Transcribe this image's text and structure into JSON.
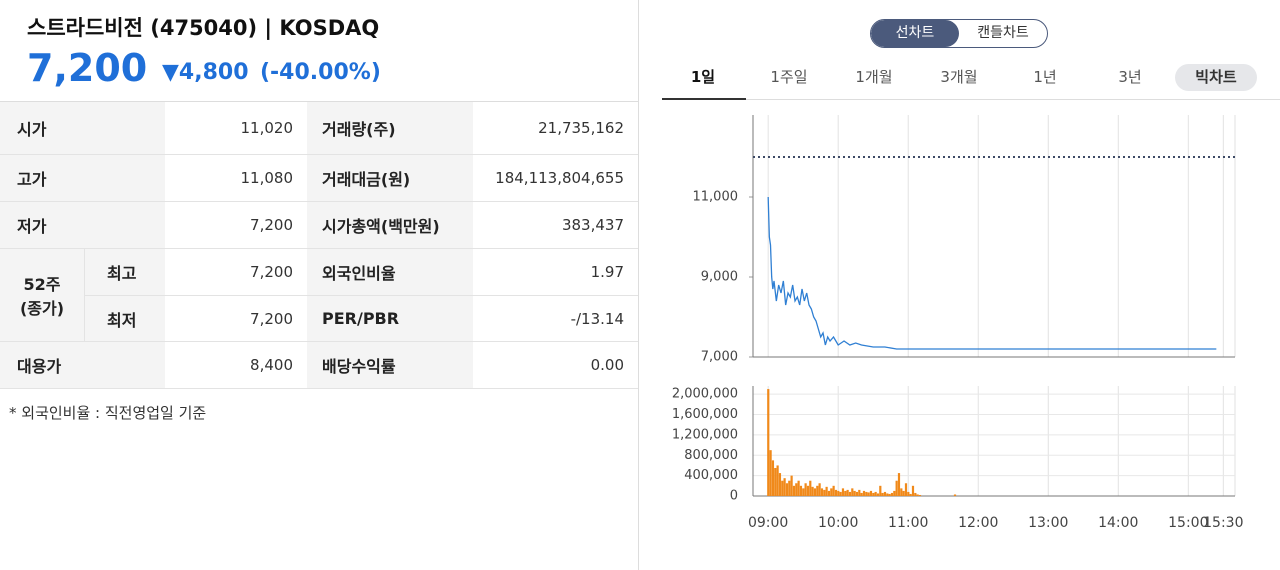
{
  "header": {
    "title": "스트라드비전 (475040) | KOSDAQ",
    "price": "7,200",
    "change": "▼4,800",
    "change_rate": "(-40.00%)"
  },
  "table": {
    "rows": [
      [
        "시가",
        "11,020",
        "거래량(주)",
        "21,735,162"
      ],
      [
        "고가",
        "11,080",
        "거래대금(원)",
        "184,113,804,655"
      ],
      [
        "저가",
        "7,200",
        "시가총액(백만원)",
        "383,437"
      ],
      [
        "최고",
        "7,200",
        "외국인비율",
        "1.97"
      ],
      [
        "최저",
        "7,200",
        "PER/PBR",
        "-/13.14"
      ],
      [
        "대용가",
        "8,400",
        "배당수익률",
        "0.00"
      ]
    ],
    "group_label": [
      "52주",
      "(종가)"
    ]
  },
  "footnote": "* 외국인비율 : 직전영업일 기준",
  "controls": {
    "segment": [
      "선차트",
      "캔들차트"
    ],
    "tabs": [
      "1일",
      "1주일",
      "1개월",
      "3개월",
      "1년",
      "3년"
    ],
    "big_chart": "빅차트"
  },
  "chart_data": [
    {
      "type": "line",
      "color": "#2f7fd3",
      "reference_line": 12000,
      "xlim": [
        527,
        940
      ],
      "ylim": [
        7000,
        13050
      ],
      "yticks": [
        {
          "value": 7000,
          "label": "7,000"
        },
        {
          "value": 9000,
          "label": "9,000"
        },
        {
          "value": 11000,
          "label": "11,000"
        }
      ],
      "x": [
        540,
        541,
        542,
        543,
        544,
        545,
        547,
        549,
        551,
        553,
        555,
        557,
        559,
        561,
        563,
        565,
        567,
        569,
        571,
        573,
        575,
        577,
        579,
        581,
        583,
        585,
        587,
        589,
        591,
        593,
        596,
        600,
        605,
        610,
        615,
        620,
        630,
        640,
        650,
        660,
        700,
        800,
        900,
        924
      ],
      "values": [
        11000,
        10000,
        9800,
        9000,
        8700,
        8900,
        8400,
        8800,
        8600,
        8900,
        8300,
        8600,
        8500,
        8800,
        8400,
        8500,
        8300,
        8700,
        8400,
        8600,
        8300,
        8200,
        8000,
        7900,
        7700,
        7500,
        7600,
        7300,
        7500,
        7400,
        7500,
        7300,
        7400,
        7300,
        7350,
        7300,
        7250,
        7250,
        7200,
        7200,
        7200,
        7200,
        7200,
        7200
      ]
    },
    {
      "type": "bar",
      "color": "#f0891a",
      "xlim": [
        527,
        940
      ],
      "ylim": [
        0,
        2160000
      ],
      "yticks": [
        0,
        {
          "value": 400000,
          "label": "400,000"
        },
        {
          "value": 800000,
          "label": "800,000"
        },
        {
          "value": 1200000,
          "label": "1,200,000"
        },
        {
          "value": 1600000,
          "label": "1,600,000"
        },
        {
          "value": 2000000,
          "label": "2,000,000"
        }
      ],
      "xticks": [
        {
          "value": 540,
          "label": "09:00"
        },
        {
          "value": 600,
          "label": "10:00"
        },
        {
          "value": 660,
          "label": "11:00"
        },
        {
          "value": 720,
          "label": "12:00"
        },
        {
          "value": 780,
          "label": "13:00"
        },
        {
          "value": 840,
          "label": "14:00"
        },
        {
          "value": 900,
          "label": "15:00"
        },
        {
          "value": 930,
          "label": "15:30"
        }
      ],
      "x": [
        540,
        542,
        544,
        546,
        548,
        550,
        552,
        554,
        556,
        558,
        560,
        562,
        564,
        566,
        568,
        570,
        572,
        574,
        576,
        578,
        580,
        582,
        584,
        586,
        588,
        590,
        592,
        594,
        596,
        598,
        600,
        602,
        604,
        606,
        608,
        610,
        612,
        614,
        616,
        618,
        620,
        622,
        624,
        626,
        628,
        630,
        632,
        634,
        636,
        638,
        640,
        642,
        644,
        646,
        648,
        650,
        652,
        654,
        656,
        658,
        660,
        662,
        664,
        666,
        668,
        670,
        700
      ],
      "values": [
        2100000,
        900000,
        700000,
        550000,
        600000,
        450000,
        300000,
        350000,
        250000,
        300000,
        400000,
        200000,
        250000,
        300000,
        200000,
        150000,
        250000,
        200000,
        300000,
        180000,
        150000,
        200000,
        250000,
        150000,
        120000,
        180000,
        100000,
        150000,
        200000,
        120000,
        100000,
        80000,
        150000,
        100000,
        120000,
        80000,
        150000,
        100000,
        80000,
        120000,
        60000,
        100000,
        80000,
        70000,
        100000,
        60000,
        80000,
        50000,
        200000,
        60000,
        80000,
        50000,
        40000,
        60000,
        100000,
        300000,
        450000,
        150000,
        100000,
        250000,
        80000,
        40000,
        200000,
        60000,
        30000,
        20000,
        30000
      ]
    }
  ]
}
